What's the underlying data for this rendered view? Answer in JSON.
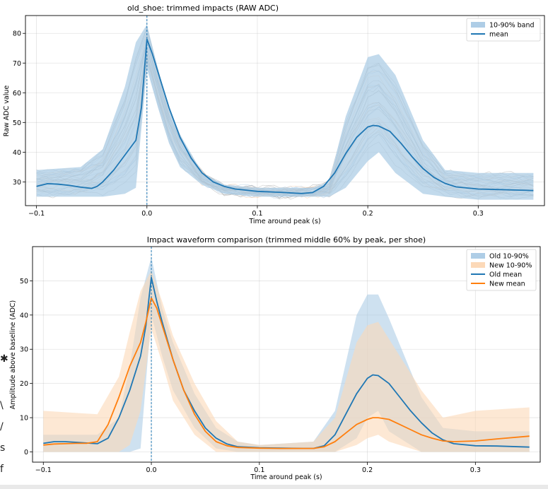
{
  "side_text": [
    "\\",
    "/",
    "s",
    "f"
  ],
  "colors": {
    "old": "#1f77b4",
    "new": "#ff7f0e",
    "old_band": "#aecde6",
    "new_band": "#fcd9b8",
    "trace_blue": "#9dc0de",
    "trace_orange": "#f6c29b",
    "trace_gray": "#9a9a9a"
  },
  "chart_data": [
    {
      "type": "line",
      "title": "old_shoe: trimmed impacts (RAW ADC)",
      "xlabel": "Time around peak (s)",
      "ylabel": "Raw ADC value",
      "xlim": [
        -0.11,
        0.36
      ],
      "ylim": [
        22,
        86
      ],
      "xticks": [
        -0.1,
        0.0,
        0.1,
        0.2,
        0.3
      ],
      "xtick_labels": [
        "−0.1",
        "0.0",
        "0.1",
        "0.2",
        "0.3"
      ],
      "yticks": [
        30,
        40,
        50,
        60,
        70,
        80
      ],
      "ytick_labels": [
        "30",
        "40",
        "50",
        "60",
        "70",
        "80"
      ],
      "grid": true,
      "legend_position": "top-right",
      "peak_marker_x": 0.0,
      "series": [
        {
          "name": "10-90% band",
          "kind": "band",
          "x": [
            -0.1,
            -0.06,
            -0.04,
            -0.02,
            -0.01,
            0.0,
            0.01,
            0.02,
            0.03,
            0.05,
            0.07,
            0.1,
            0.15,
            0.165,
            0.18,
            0.2,
            0.21,
            0.225,
            0.25,
            0.27,
            0.3,
            0.35
          ],
          "low": [
            25,
            25,
            25,
            26,
            28,
            68,
            55,
            43,
            35,
            29,
            26,
            25,
            25,
            25,
            28,
            37,
            40,
            33,
            26,
            25,
            24,
            24
          ],
          "high": [
            34,
            35,
            41,
            62,
            77,
            83,
            68,
            55,
            46,
            33,
            29,
            28,
            28,
            30,
            52,
            72,
            73,
            66,
            44,
            34,
            33,
            33
          ]
        },
        {
          "name": "mean",
          "kind": "line",
          "x": [
            -0.1,
            -0.09,
            -0.08,
            -0.07,
            -0.06,
            -0.05,
            -0.045,
            -0.04,
            -0.03,
            -0.02,
            -0.01,
            -0.005,
            0.0,
            0.005,
            0.01,
            0.02,
            0.03,
            0.04,
            0.05,
            0.06,
            0.07,
            0.08,
            0.1,
            0.12,
            0.14,
            0.15,
            0.16,
            0.17,
            0.18,
            0.19,
            0.2,
            0.205,
            0.21,
            0.22,
            0.23,
            0.24,
            0.25,
            0.26,
            0.27,
            0.28,
            0.3,
            0.32,
            0.35
          ],
          "y": [
            28.5,
            29.4,
            29.2,
            28.8,
            28.2,
            27.8,
            28.5,
            30,
            34,
            39,
            44,
            55,
            78,
            73,
            67,
            55,
            45,
            38,
            33,
            30,
            28.5,
            27.6,
            26.8,
            26.5,
            26.1,
            26.4,
            28.5,
            33,
            39.5,
            45,
            48.5,
            49,
            48.8,
            47,
            43,
            38.5,
            34.5,
            31.5,
            29.5,
            28.3,
            27.6,
            27.4,
            27.1
          ]
        }
      ]
    },
    {
      "type": "line",
      "title": "Impact waveform comparison (trimmed middle 60% by peak, per shoe)",
      "xlabel": "Time around peak (s)",
      "ylabel": "Amplitude above baseline (ADC)",
      "xlim": [
        -0.11,
        0.36
      ],
      "ylim": [
        -3,
        60
      ],
      "xticks": [
        -0.1,
        0.0,
        0.1,
        0.2,
        0.3
      ],
      "xtick_labels": [
        "−0.1",
        "0.0",
        "0.1",
        "0.2",
        "0.3"
      ],
      "yticks": [
        0,
        10,
        20,
        30,
        40,
        50
      ],
      "ytick_labels": [
        "0",
        "10",
        "20",
        "30",
        "40",
        "50"
      ],
      "grid": true,
      "legend_position": "top-right",
      "peak_marker_x": 0.0,
      "series": [
        {
          "name": "Old 10-90%",
          "kind": "band",
          "color_key": "old_band",
          "x": [
            -0.1,
            -0.05,
            -0.03,
            -0.02,
            -0.01,
            0.0,
            0.01,
            0.02,
            0.04,
            0.06,
            0.08,
            0.1,
            0.15,
            0.17,
            0.19,
            0.2,
            0.21,
            0.22,
            0.25,
            0.27,
            0.3,
            0.35
          ],
          "low": [
            0,
            0,
            0,
            0,
            1,
            40,
            28,
            18,
            7,
            1,
            0,
            0,
            0,
            0,
            4,
            10,
            12,
            6,
            0,
            0,
            0,
            0
          ],
          "high": [
            5,
            5,
            10,
            25,
            45,
            57,
            42,
            32,
            17,
            7,
            3,
            2,
            3,
            12,
            40,
            46,
            46,
            39,
            16,
            7,
            6,
            6
          ]
        },
        {
          "name": "New 10-90%",
          "kind": "band",
          "color_key": "new_band",
          "x": [
            -0.1,
            -0.05,
            -0.03,
            -0.02,
            -0.01,
            0.0,
            0.01,
            0.02,
            0.04,
            0.06,
            0.08,
            0.1,
            0.15,
            0.17,
            0.19,
            0.2,
            0.21,
            0.22,
            0.25,
            0.27,
            0.3,
            0.35
          ],
          "low": [
            0,
            0,
            0,
            2,
            12,
            36,
            26,
            15,
            5,
            0,
            0,
            0,
            0,
            0,
            2,
            4,
            5,
            3,
            0,
            0,
            0,
            0
          ],
          "high": [
            12,
            11,
            22,
            35,
            47,
            53,
            44,
            34,
            20,
            9,
            3,
            2,
            3,
            10,
            32,
            37,
            38,
            33,
            18,
            10,
            12,
            13
          ]
        },
        {
          "name": "Old mean",
          "kind": "line",
          "color_key": "old",
          "x": [
            -0.1,
            -0.09,
            -0.08,
            -0.07,
            -0.06,
            -0.05,
            -0.04,
            -0.03,
            -0.02,
            -0.01,
            -0.005,
            0.0,
            0.005,
            0.01,
            0.02,
            0.03,
            0.04,
            0.05,
            0.06,
            0.07,
            0.08,
            0.1,
            0.12,
            0.14,
            0.15,
            0.16,
            0.17,
            0.18,
            0.19,
            0.2,
            0.205,
            0.21,
            0.22,
            0.23,
            0.24,
            0.25,
            0.26,
            0.27,
            0.28,
            0.3,
            0.32,
            0.35
          ],
          "y": [
            2.5,
            3,
            3,
            2.8,
            2.6,
            2.4,
            4,
            10,
            18,
            28,
            37,
            51,
            44,
            38,
            27,
            18,
            12,
            7,
            4,
            2.3,
            1.5,
            1.2,
            1.1,
            1.0,
            1.0,
            1.8,
            5,
            11,
            17,
            21.5,
            22.5,
            22.3,
            20,
            16,
            12,
            8.5,
            5.5,
            3.5,
            2.4,
            1.8,
            1.7,
            1.4
          ]
        },
        {
          "name": "New mean",
          "kind": "line",
          "color_key": "new",
          "x": [
            -0.1,
            -0.09,
            -0.08,
            -0.07,
            -0.06,
            -0.05,
            -0.04,
            -0.03,
            -0.02,
            -0.01,
            -0.005,
            0.0,
            0.005,
            0.01,
            0.02,
            0.03,
            0.04,
            0.05,
            0.06,
            0.07,
            0.08,
            0.1,
            0.12,
            0.14,
            0.15,
            0.16,
            0.17,
            0.18,
            0.19,
            0.2,
            0.205,
            0.21,
            0.22,
            0.23,
            0.24,
            0.25,
            0.26,
            0.27,
            0.28,
            0.3,
            0.32,
            0.35
          ],
          "y": [
            2,
            2.3,
            2.4,
            2.5,
            2.5,
            3,
            8,
            16,
            25,
            32,
            38,
            45,
            42,
            37,
            27,
            18,
            11,
            6,
            3,
            1.8,
            1.3,
            1.1,
            1.0,
            1.0,
            1.0,
            1.5,
            3,
            5.5,
            8,
            9.5,
            10,
            10,
            9.5,
            8,
            6.5,
            5,
            4,
            3.2,
            3,
            3.2,
            3.8,
            4.6
          ]
        }
      ]
    }
  ]
}
